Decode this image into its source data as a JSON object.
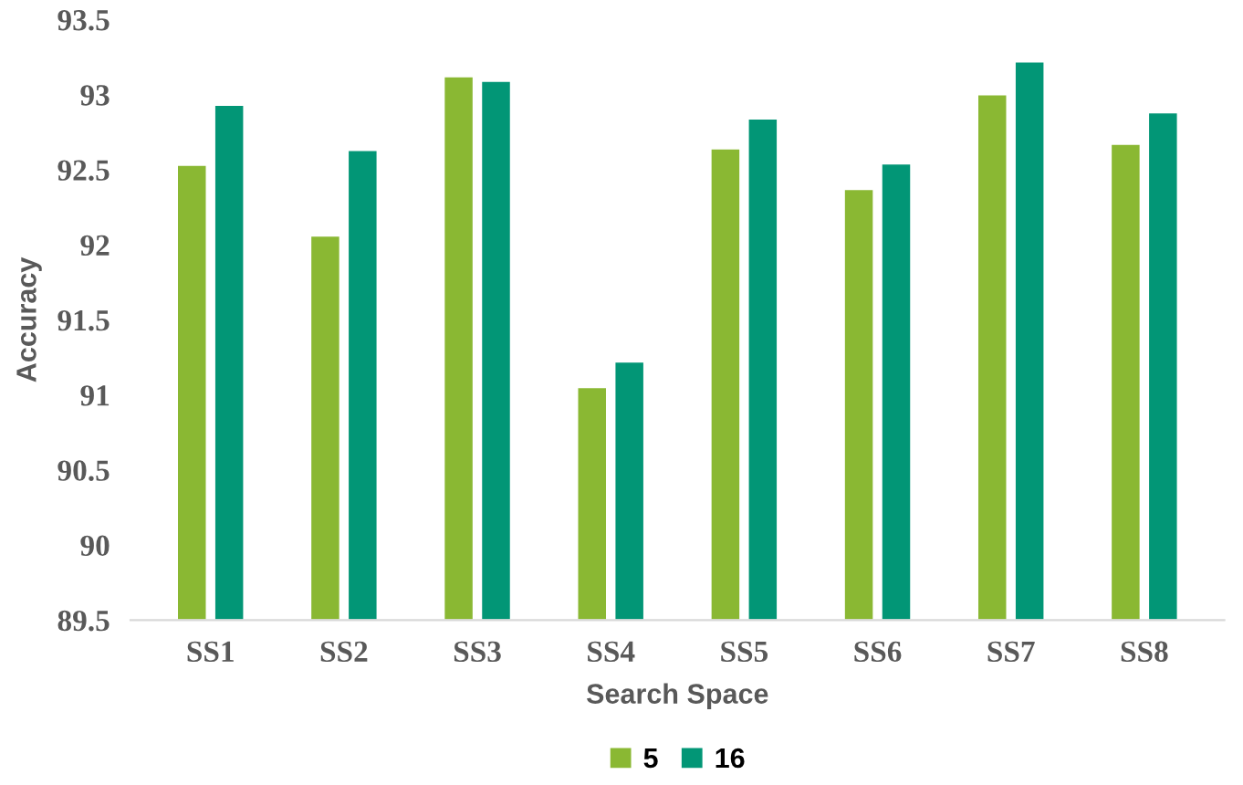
{
  "chart_data": {
    "type": "bar",
    "xlabel": "Search Space",
    "ylabel": "Accuracy",
    "categories": [
      "SS1",
      "SS2",
      "SS3",
      "SS4",
      "SS5",
      "SS6",
      "SS7",
      "SS8"
    ],
    "series": [
      {
        "name": "5",
        "color": "#8ab833",
        "values": [
          92.53,
          92.06,
          93.12,
          91.05,
          92.64,
          92.37,
          93.0,
          92.67
        ]
      },
      {
        "name": "16",
        "color": "#029676",
        "values": [
          92.93,
          92.63,
          93.09,
          91.22,
          92.84,
          92.54,
          93.22,
          92.88
        ]
      }
    ],
    "ylim": [
      89.5,
      93.5
    ],
    "yticks": [
      89.5,
      90,
      90.5,
      91,
      91.5,
      92,
      92.5,
      93,
      93.5
    ],
    "grid": false,
    "legend": "bottom"
  }
}
